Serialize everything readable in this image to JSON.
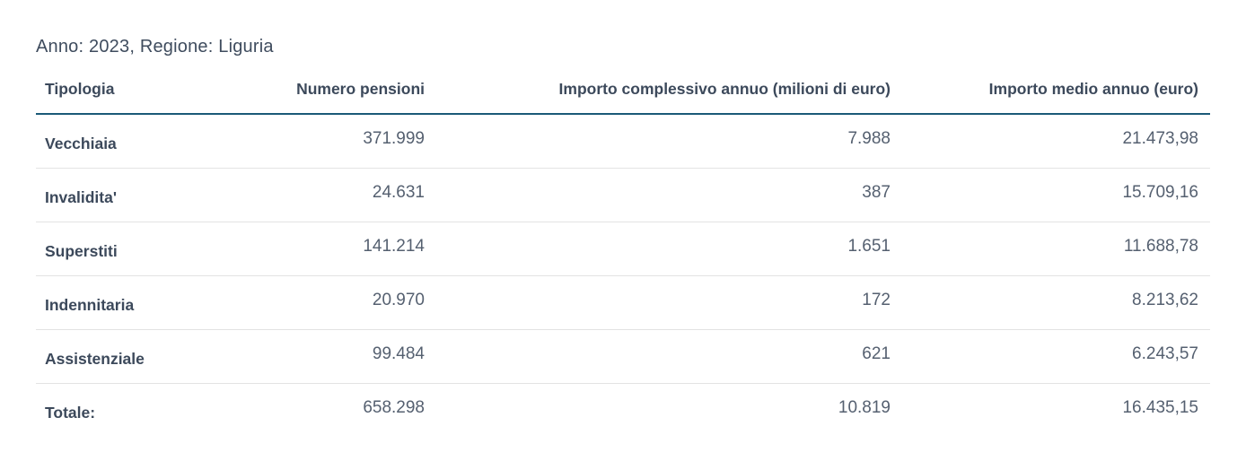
{
  "header": {
    "title": "Anno: 2023, Regione: Liguria"
  },
  "chart_data": {
    "type": "table",
    "title": "Anno: 2023, Regione: Liguria",
    "year": "2023",
    "region": "Liguria",
    "columns": [
      "Tipologia",
      "Numero pensioni",
      "Importo complessivo annuo (milioni di euro)",
      "Importo medio annuo (euro)"
    ],
    "rows": [
      [
        "Vecchiaia",
        "371.999",
        "7.988",
        "21.473,98"
      ],
      [
        "Invalidita'",
        "24.631",
        "387",
        "15.709,16"
      ],
      [
        "Superstiti",
        "141.214",
        "1.651",
        "11.688,78"
      ],
      [
        "Indennitaria",
        "20.970",
        "172",
        "8.213,62"
      ],
      [
        "Assistenziale",
        "99.484",
        "621",
        "6.243,57"
      ],
      [
        "Totale:",
        "658.298",
        "10.819",
        "16.435,15"
      ]
    ]
  },
  "colors": {
    "header_rule": "#1b5a78",
    "row_divider": "#e3e3e3",
    "heading_text": "#3c495b",
    "value_text": "#556070",
    "background": "#ffffff"
  }
}
